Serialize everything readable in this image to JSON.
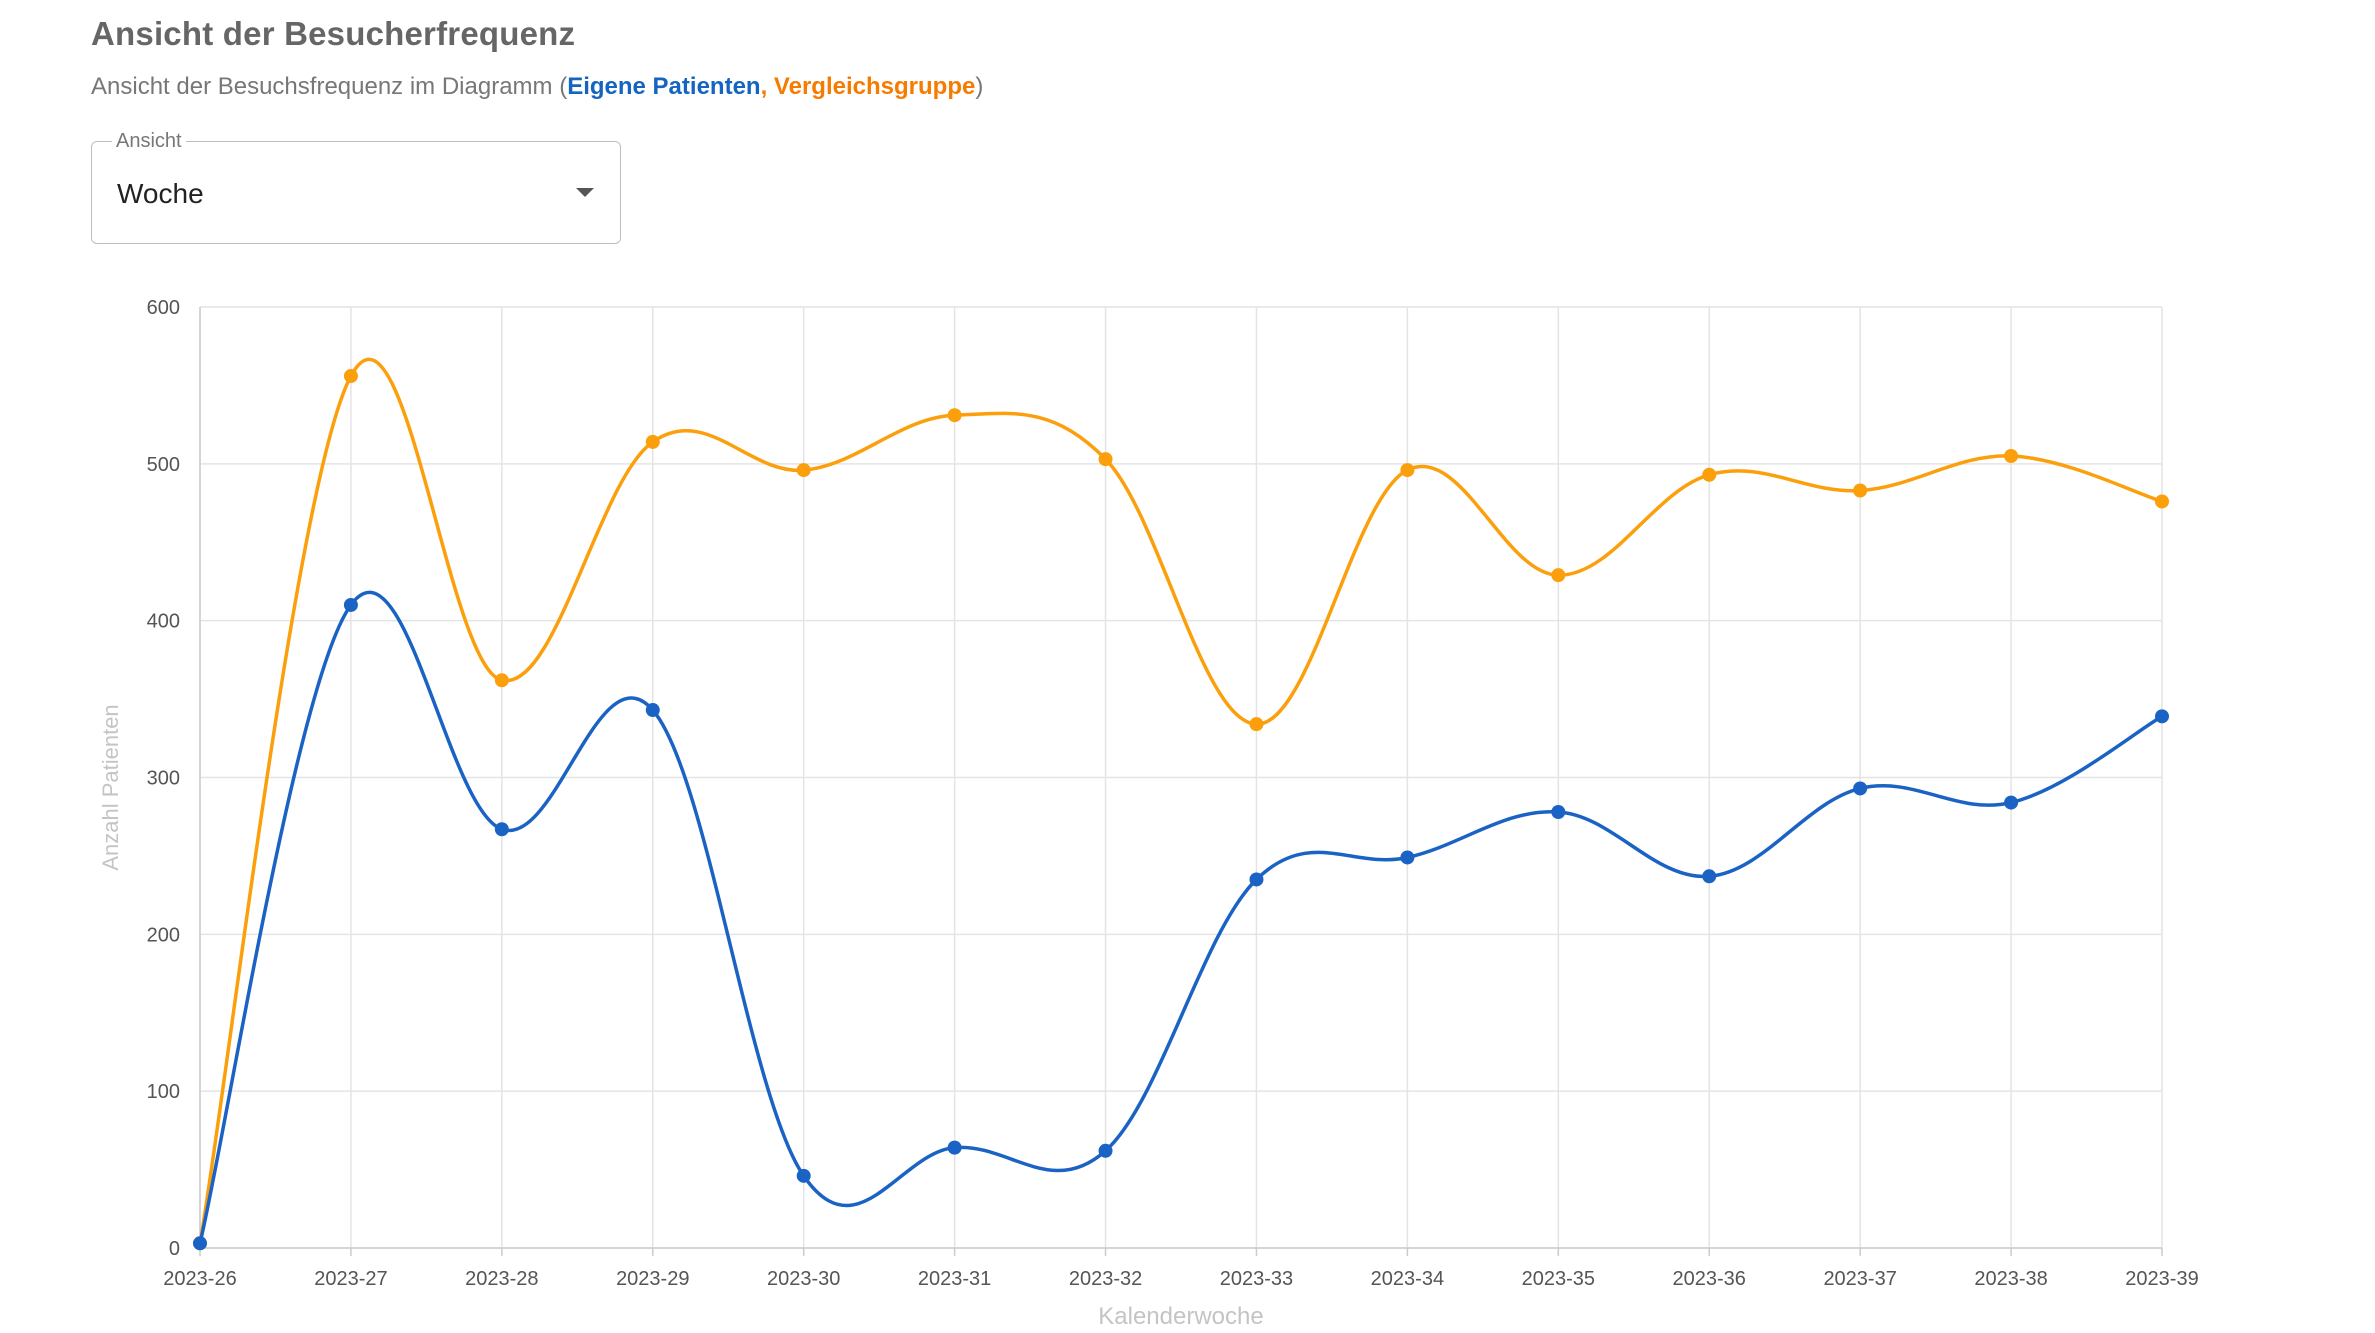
{
  "header": {
    "title": "Ansicht der Besucherfrequenz",
    "subtitle_prefix": "Ansicht der Besuchsfrequenz im Diagramm (",
    "subtitle_series_own": "Eigene Patienten",
    "subtitle_separator": ", ",
    "subtitle_series_compare": "Vergleichsgruppe",
    "subtitle_suffix": ")"
  },
  "view_select": {
    "label": "Ansicht",
    "value": "Woche",
    "icon": "arrow-drop-down-icon"
  },
  "colors": {
    "own": "#1a63c4",
    "compare": "#fb9f0c",
    "grid": "#e4e4e4",
    "axis_title": "#c4c4c4",
    "tick": "#555555"
  },
  "chart_data": {
    "type": "line",
    "xlabel": "Kalenderwoche",
    "ylabel": "Anzahl Patienten",
    "ylim": [
      0,
      600
    ],
    "yticks": [
      0,
      100,
      200,
      300,
      400,
      500,
      600
    ],
    "grid": true,
    "smooth": true,
    "categories": [
      "2023-26",
      "2023-27",
      "2023-28",
      "2023-29",
      "2023-30",
      "2023-31",
      "2023-32",
      "2023-33",
      "2023-34",
      "2023-35",
      "2023-36",
      "2023-37",
      "2023-38",
      "2023-39"
    ],
    "series": [
      {
        "name": "Vergleichsgruppe",
        "color": "#fb9f0c",
        "values": [
          3,
          556,
          362,
          514,
          496,
          531,
          503,
          334,
          496,
          429,
          493,
          483,
          505,
          476
        ]
      },
      {
        "name": "Eigene Patienten",
        "color": "#1a63c4",
        "values": [
          3,
          410,
          267,
          343,
          46,
          64,
          62,
          235,
          249,
          278,
          237,
          293,
          284,
          339
        ]
      }
    ]
  }
}
